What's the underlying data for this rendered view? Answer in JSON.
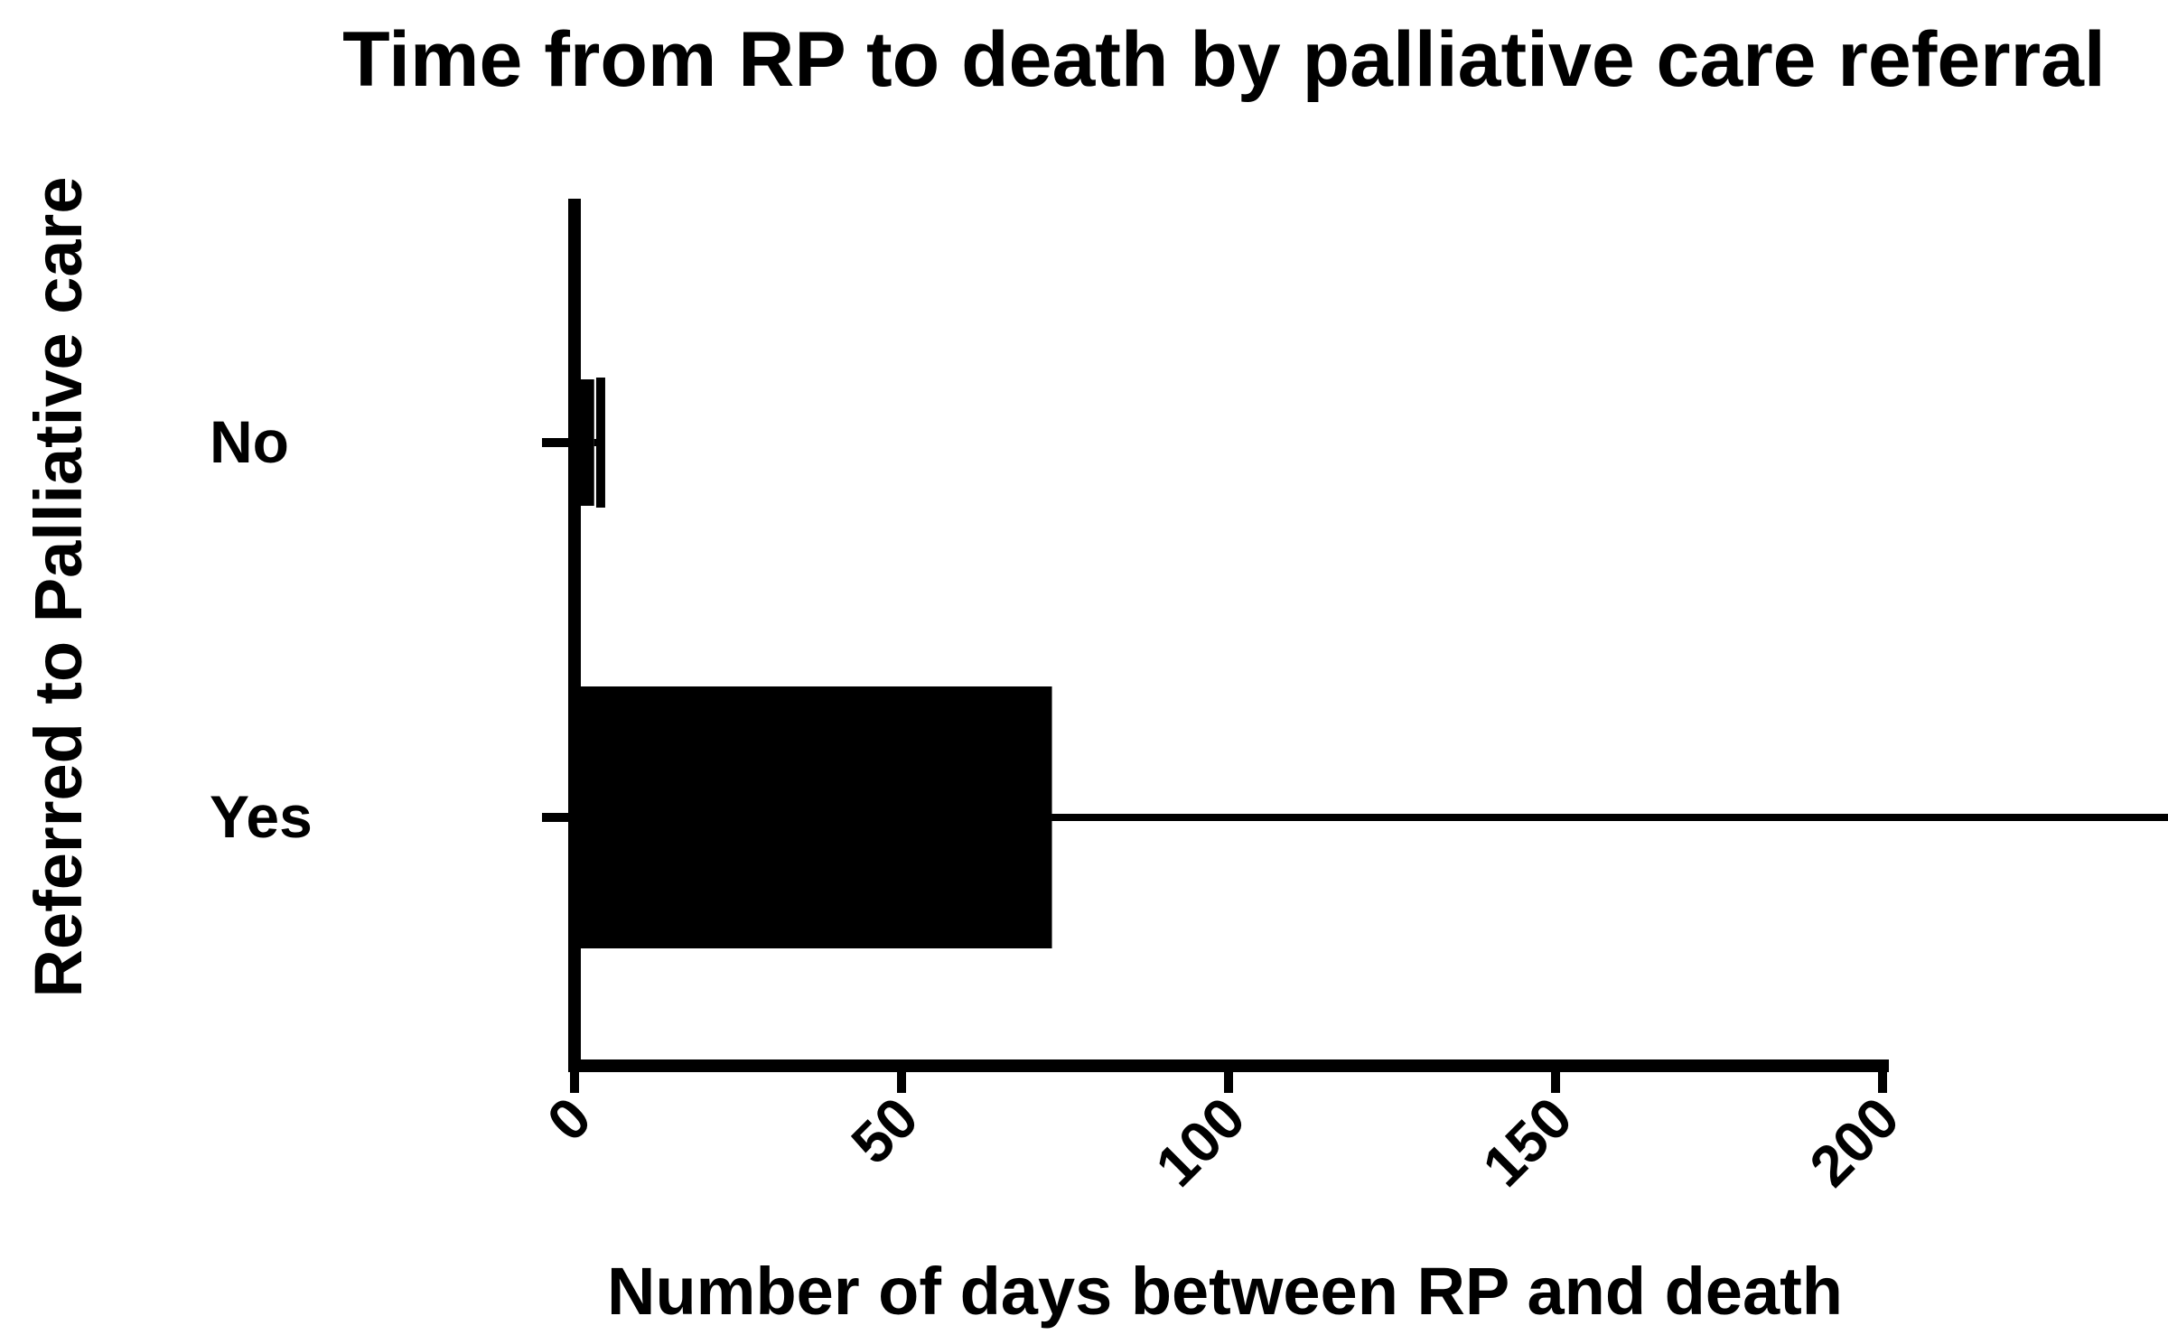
{
  "chart_data": {
    "type": "bar",
    "orientation": "horizontal",
    "title": "Time from RP to death by palliative care referral",
    "xlabel": "Number of days between RP and death",
    "ylabel": "Referred to Palliative care",
    "categories": [
      "No",
      "Yes"
    ],
    "values": [
      3,
      73
    ],
    "error_upper": [
      1,
      188
    ],
    "xlim": [
      0,
      200
    ],
    "xticks": [
      0,
      50,
      100,
      150,
      200
    ],
    "xtick_labels": [
      "0",
      "50",
      "100",
      "150",
      "200"
    ],
    "grid": false,
    "legend": "none",
    "colors": {
      "bar": "#000000",
      "axis": "#000000",
      "background": "#ffffff"
    }
  }
}
